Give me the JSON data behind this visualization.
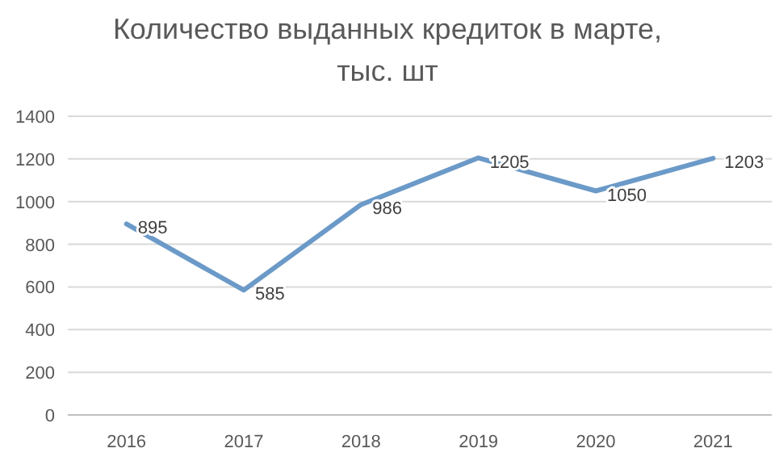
{
  "chart_data": {
    "type": "line",
    "title": "Количество выданных кредиток в марте,\nтыс. шт",
    "categories": [
      "2016",
      "2017",
      "2018",
      "2019",
      "2020",
      "2021"
    ],
    "values": [
      895,
      585,
      986,
      1205,
      1050,
      1203
    ],
    "color": "#6b9ac8",
    "ylim": [
      0,
      1400
    ],
    "yticks": [
      0,
      200,
      400,
      600,
      800,
      1000,
      1200,
      1400
    ],
    "grid": "y",
    "data_labels": true,
    "marker": "none",
    "line_style": "solid"
  }
}
